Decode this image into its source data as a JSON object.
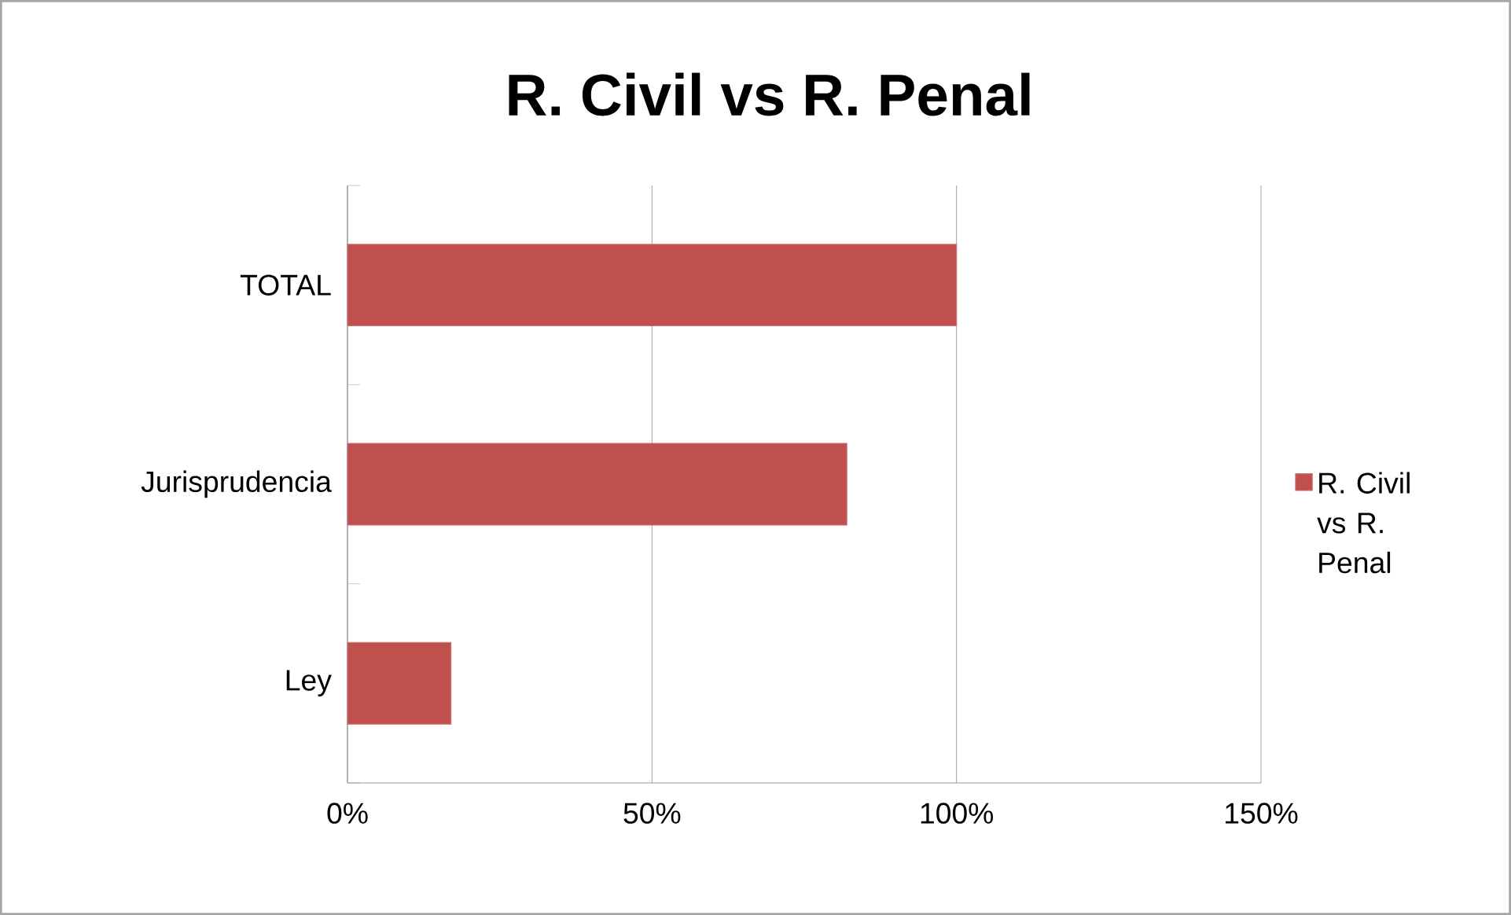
{
  "chart_data": {
    "type": "bar",
    "orientation": "horizontal",
    "title": "R. Civil vs R. Penal",
    "categories": [
      "TOTAL",
      "Jurisprudencia",
      "Ley"
    ],
    "series": [
      {
        "name": "R. Civil vs R. Penal",
        "color": "#c0504d",
        "values": [
          100,
          82,
          17
        ]
      }
    ],
    "xlim": [
      0,
      150
    ],
    "xticks": [
      {
        "value": 0,
        "label": "0%"
      },
      {
        "value": 50,
        "label": "50%"
      },
      {
        "value": 100,
        "label": "100%"
      },
      {
        "value": 150,
        "label": "150%"
      }
    ],
    "grid": "x",
    "legend": "right"
  }
}
